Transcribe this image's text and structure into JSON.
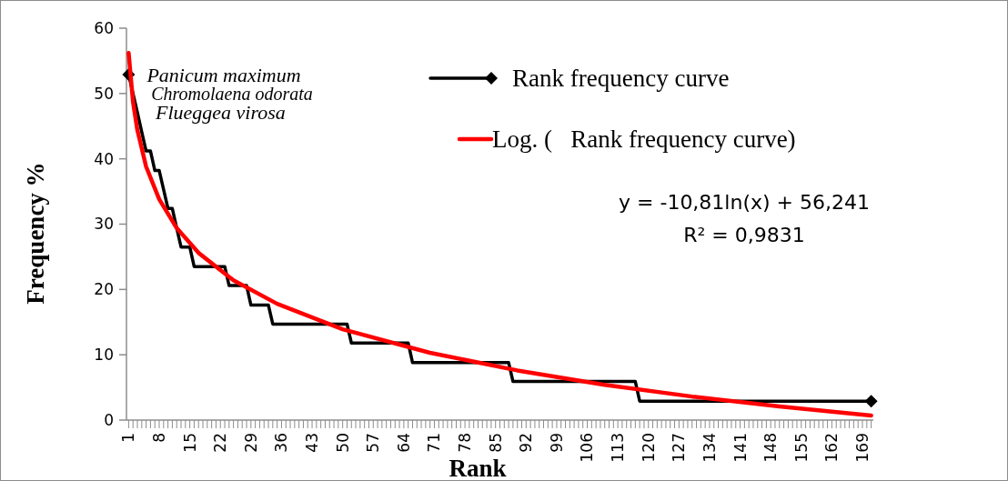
{
  "chart_data": {
    "type": "line",
    "xlabel": "Rank",
    "ylabel": "Frequency %",
    "xlim": [
      0.5,
      171.5
    ],
    "ylim": [
      0,
      60
    ],
    "yticks": [
      0,
      10,
      20,
      30,
      40,
      50,
      60
    ],
    "xticks": [
      1,
      {
        "value": 2,
        "label": null
      },
      {
        "value": 3,
        "label": null
      },
      {
        "value": 4,
        "label": null
      },
      {
        "value": 5,
        "label": null
      },
      {
        "value": 6,
        "label": null
      },
      {
        "value": 7,
        "label": null
      },
      8,
      {
        "value": 9,
        "label": null
      },
      {
        "value": 10,
        "label": null
      },
      {
        "value": 11,
        "label": null
      },
      {
        "value": 12,
        "label": null
      },
      {
        "value": 13,
        "label": null
      },
      {
        "value": 14,
        "label": null
      },
      15,
      {
        "value": 16,
        "label": null
      },
      {
        "value": 17,
        "label": null
      },
      {
        "value": 18,
        "label": null
      },
      {
        "value": 19,
        "label": null
      },
      {
        "value": 20,
        "label": null
      },
      {
        "value": 21,
        "label": null
      },
      22,
      {
        "value": 23,
        "label": null
      },
      {
        "value": 24,
        "label": null
      },
      {
        "value": 25,
        "label": null
      },
      {
        "value": 26,
        "label": null
      },
      {
        "value": 27,
        "label": null
      },
      {
        "value": 28,
        "label": null
      },
      29,
      {
        "value": 30,
        "label": null
      },
      {
        "value": 31,
        "label": null
      },
      {
        "value": 32,
        "label": null
      },
      {
        "value": 33,
        "label": null
      },
      {
        "value": 34,
        "label": null
      },
      {
        "value": 35,
        "label": null
      },
      36,
      {
        "value": 37,
        "label": null
      },
      {
        "value": 38,
        "label": null
      },
      {
        "value": 39,
        "label": null
      },
      {
        "value": 40,
        "label": null
      },
      {
        "value": 41,
        "label": null
      },
      {
        "value": 42,
        "label": null
      },
      43,
      {
        "value": 44,
        "label": null
      },
      {
        "value": 45,
        "label": null
      },
      {
        "value": 46,
        "label": null
      },
      {
        "value": 47,
        "label": null
      },
      {
        "value": 48,
        "label": null
      },
      {
        "value": 49,
        "label": null
      },
      50,
      {
        "value": 51,
        "label": null
      },
      {
        "value": 52,
        "label": null
      },
      {
        "value": 53,
        "label": null
      },
      {
        "value": 54,
        "label": null
      },
      {
        "value": 55,
        "label": null
      },
      {
        "value": 56,
        "label": null
      },
      57,
      {
        "value": 58,
        "label": null
      },
      {
        "value": 59,
        "label": null
      },
      {
        "value": 60,
        "label": null
      },
      {
        "value": 61,
        "label": null
      },
      {
        "value": 62,
        "label": null
      },
      {
        "value": 63,
        "label": null
      },
      64,
      {
        "value": 65,
        "label": null
      },
      {
        "value": 66,
        "label": null
      },
      {
        "value": 67,
        "label": null
      },
      {
        "value": 68,
        "label": null
      },
      {
        "value": 69,
        "label": null
      },
      {
        "value": 70,
        "label": null
      },
      71,
      {
        "value": 72,
        "label": null
      },
      {
        "value": 73,
        "label": null
      },
      {
        "value": 74,
        "label": null
      },
      {
        "value": 75,
        "label": null
      },
      {
        "value": 76,
        "label": null
      },
      {
        "value": 77,
        "label": null
      },
      78,
      {
        "value": 79,
        "label": null
      },
      {
        "value": 80,
        "label": null
      },
      {
        "value": 81,
        "label": null
      },
      {
        "value": 82,
        "label": null
      },
      {
        "value": 83,
        "label": null
      },
      {
        "value": 84,
        "label": null
      },
      85,
      {
        "value": 86,
        "label": null
      },
      {
        "value": 87,
        "label": null
      },
      {
        "value": 88,
        "label": null
      },
      {
        "value": 89,
        "label": null
      },
      {
        "value": 90,
        "label": null
      },
      {
        "value": 91,
        "label": null
      },
      92,
      {
        "value": 93,
        "label": null
      },
      {
        "value": 94,
        "label": null
      },
      {
        "value": 95,
        "label": null
      },
      {
        "value": 96,
        "label": null
      },
      {
        "value": 97,
        "label": null
      },
      {
        "value": 98,
        "label": null
      },
      99,
      {
        "value": 100,
        "label": null
      },
      {
        "value": 101,
        "label": null
      },
      {
        "value": 102,
        "label": null
      },
      {
        "value": 103,
        "label": null
      },
      {
        "value": 104,
        "label": null
      },
      {
        "value": 105,
        "label": null
      },
      106,
      {
        "value": 107,
        "label": null
      },
      {
        "value": 108,
        "label": null
      },
      {
        "value": 109,
        "label": null
      },
      {
        "value": 110,
        "label": null
      },
      {
        "value": 111,
        "label": null
      },
      {
        "value": 112,
        "label": null
      },
      113,
      {
        "value": 114,
        "label": null
      },
      {
        "value": 115,
        "label": null
      },
      {
        "value": 116,
        "label": null
      },
      {
        "value": 117,
        "label": null
      },
      {
        "value": 118,
        "label": null
      },
      {
        "value": 119,
        "label": null
      },
      120,
      {
        "value": 121,
        "label": null
      },
      {
        "value": 122,
        "label": null
      },
      {
        "value": 123,
        "label": null
      },
      {
        "value": 124,
        "label": null
      },
      {
        "value": 125,
        "label": null
      },
      {
        "value": 126,
        "label": null
      },
      127,
      {
        "value": 128,
        "label": null
      },
      {
        "value": 129,
        "label": null
      },
      {
        "value": 130,
        "label": null
      },
      {
        "value": 131,
        "label": null
      },
      {
        "value": 132,
        "label": null
      },
      {
        "value": 133,
        "label": null
      },
      134,
      {
        "value": 135,
        "label": null
      },
      {
        "value": 136,
        "label": null
      },
      {
        "value": 137,
        "label": null
      },
      {
        "value": 138,
        "label": null
      },
      {
        "value": 139,
        "label": null
      },
      {
        "value": 140,
        "label": null
      },
      141,
      {
        "value": 142,
        "label": null
      },
      {
        "value": 143,
        "label": null
      },
      {
        "value": 144,
        "label": null
      },
      {
        "value": 145,
        "label": null
      },
      {
        "value": 146,
        "label": null
      },
      {
        "value": 147,
        "label": null
      },
      148,
      {
        "value": 149,
        "label": null
      },
      {
        "value": 150,
        "label": null
      },
      {
        "value": 151,
        "label": null
      },
      {
        "value": 152,
        "label": null
      },
      {
        "value": 153,
        "label": null
      },
      {
        "value": 154,
        "label": null
      },
      155,
      {
        "value": 156,
        "label": null
      },
      {
        "value": 157,
        "label": null
      },
      {
        "value": 158,
        "label": null
      },
      {
        "value": 159,
        "label": null
      },
      {
        "value": 160,
        "label": null
      },
      {
        "value": 161,
        "label": null
      },
      162,
      {
        "value": 163,
        "label": null
      },
      {
        "value": 164,
        "label": null
      },
      {
        "value": 165,
        "label": null
      },
      {
        "value": 166,
        "label": null
      },
      {
        "value": 167,
        "label": null
      },
      {
        "value": 168,
        "label": null
      },
      169,
      {
        "value": 170,
        "label": null
      },
      {
        "value": 171,
        "label": null
      }
    ],
    "grid": false,
    "legend": "top right",
    "series": [
      {
        "name": "Rank frequency curve",
        "color": "#000000",
        "x": [
          1,
          2,
          3,
          4,
          5,
          6,
          7,
          8,
          9,
          10,
          11,
          12,
          13,
          15,
          16,
          23,
          24,
          28,
          29,
          33,
          34,
          51,
          52,
          65,
          66,
          88,
          89,
          117,
          118,
          171
        ],
        "values": [
          52.9,
          50.0,
          47.1,
          44.1,
          41.2,
          41.2,
          38.2,
          38.2,
          35.3,
          32.4,
          32.4,
          29.4,
          26.5,
          26.5,
          23.5,
          23.5,
          20.6,
          20.6,
          17.6,
          17.6,
          14.7,
          14.7,
          11.8,
          11.8,
          8.8,
          8.8,
          5.9,
          5.9,
          2.9,
          2.9
        ]
      },
      {
        "name": "Log. (   Rank frequency curve)",
        "color": "#ff0000",
        "x": [
          1,
          2,
          3,
          5,
          8,
          12,
          17,
          25,
          35,
          50,
          70,
          90,
          110,
          130,
          150,
          171
        ],
        "values": [
          56.2,
          48.7,
          44.4,
          38.8,
          33.8,
          29.4,
          25.6,
          21.4,
          17.8,
          13.9,
          10.3,
          7.6,
          5.4,
          3.6,
          2.1,
          0.7
        ]
      }
    ],
    "annotations": [
      {
        "text": "Panicum maximum",
        "x": 1,
        "y": 52.9
      },
      {
        "text": "Chromolaena odorata",
        "x": 2,
        "y": 50.0
      },
      {
        "text": "Flueggea virosa",
        "x": 3,
        "y": 47.1
      },
      "y = -10,81ln(x) + 56,241",
      "R² = 0,9831"
    ]
  }
}
